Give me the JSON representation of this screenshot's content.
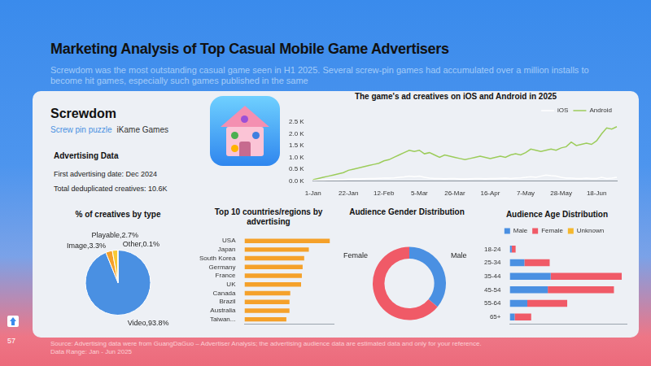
{
  "header": {
    "title": "Marketing Analysis of Top Casual Mobile Game Advertisers",
    "subtitle": "Screwdom was the most outstanding casual game seen in H1 2025. Several screw-pin games had accumulated over a million installs to become hit games, especially such games published in the same"
  },
  "game": {
    "name": "Screwdom",
    "genre": "Screw pin puzzle",
    "publisher": "iKame Games"
  },
  "advertising_data": {
    "heading": "Advertising Data",
    "lines": [
      "First advertising date: Dec 2024",
      "Total deduplicated creatives: 10.6K"
    ]
  },
  "chart_data": [
    {
      "type": "line",
      "title": "The game's ad creatives on iOS and Android in 2025",
      "categories": [
        "1-Jan",
        null,
        null,
        null,
        null,
        null,
        null,
        "22-Jan",
        null,
        null,
        null,
        null,
        null,
        null,
        "12-Feb",
        null,
        null,
        null,
        null,
        null,
        null,
        "5-Mar",
        null,
        null,
        null,
        null,
        null,
        null,
        "26-Mar",
        null,
        null,
        null,
        null,
        null,
        null,
        "16-Apr",
        null,
        null,
        null,
        null,
        null,
        null,
        "7-May",
        null,
        null,
        null,
        null,
        null,
        null,
        "28-May",
        null,
        null,
        null,
        null,
        null,
        null,
        "18-Jun",
        null,
        null,
        null,
        null
      ],
      "series": [
        {
          "name": "iOS",
          "color": "#ffffff",
          "values": [
            0.02,
            0.03,
            0.03,
            0.04,
            0.05,
            0.05,
            0.06,
            0.07,
            0.08,
            0.08,
            0.09,
            0.1,
            0.1,
            0.11,
            0.12,
            0.12,
            0.13,
            0.15,
            0.17,
            0.2,
            0.18,
            0.2,
            0.15,
            0.12,
            0.1,
            0.1,
            0.09,
            0.1,
            0.1,
            0.08,
            0.08,
            0.09,
            0.1,
            0.1,
            0.09,
            0.1,
            0.1,
            0.11,
            0.12,
            0.1,
            0.12,
            0.13,
            0.15,
            0.18,
            0.15,
            0.2,
            0.25,
            0.22,
            0.2,
            0.15,
            0.12,
            0.12,
            0.1,
            0.1,
            0.12,
            0.1,
            0.1,
            0.15,
            0.1,
            0.12,
            0.15
          ]
        },
        {
          "name": "Android",
          "color": "#9ccc5a",
          "values": [
            0.05,
            0.1,
            0.15,
            0.2,
            0.25,
            0.3,
            0.35,
            0.45,
            0.5,
            0.55,
            0.6,
            0.65,
            0.7,
            0.75,
            0.85,
            0.9,
            1.0,
            1.1,
            1.2,
            1.3,
            1.25,
            1.3,
            1.15,
            1.2,
            1.1,
            1.0,
            1.1,
            1.05,
            1.0,
            0.95,
            0.9,
            0.95,
            1.0,
            1.05,
            1.0,
            0.95,
            1.0,
            1.05,
            1.0,
            1.1,
            1.15,
            1.1,
            1.2,
            1.35,
            1.3,
            1.25,
            1.3,
            1.35,
            1.3,
            1.4,
            1.45,
            1.65,
            1.5,
            1.55,
            1.6,
            1.55,
            1.7,
            2.0,
            2.25,
            2.2,
            2.3
          ]
        }
      ],
      "ylim": [
        0,
        2.5
      ],
      "yticks": [
        {
          "value": 0,
          "label": "0.0 K"
        },
        {
          "value": 0.5,
          "label": "0.5 K"
        },
        {
          "value": 1,
          "label": "1.0 K"
        },
        {
          "value": 1.5,
          "label": "1.5 K"
        },
        {
          "value": 2,
          "label": "2.0 K"
        },
        {
          "value": 2.5,
          "label": "2.5 K"
        }
      ],
      "grid": false,
      "legend": "top-right"
    },
    {
      "type": "pie",
      "title": "% of creatives by type",
      "categories": [
        "Video",
        "Image",
        "Playable",
        "Other"
      ],
      "values": [
        93.8,
        3.3,
        2.7,
        0.1
      ],
      "value_labels": [
        "Video,93.8%",
        "Image,3.3%",
        "Playable,2.7%",
        "Other,0.1%"
      ],
      "colors": [
        "#4a90e2",
        "#f5a02a",
        "#f8c935",
        "#b3b9c2"
      ],
      "data_labels": true
    },
    {
      "type": "bar",
      "title": "Top 10 countries/regions by advertising",
      "categories": [
        "USA",
        "Japan",
        "South Korea",
        "Germany",
        "France",
        "UK",
        "Canada",
        "Brazil",
        "Australia",
        "Taiwan..."
      ],
      "values": [
        110,
        83,
        77,
        75,
        74,
        73,
        59,
        58,
        58,
        54
      ],
      "color": "#f5a12a",
      "orientation": "horizontal",
      "xlim": [
        0,
        115
      ],
      "tick_labels": "y",
      "grid": false
    },
    {
      "type": "doughnut",
      "title": "Audience Gender Distribution",
      "categories": [
        "Male",
        "Female"
      ],
      "values": [
        36,
        64
      ],
      "colors": [
        "#4a90e2",
        "#f05a67"
      ]
    },
    {
      "type": "bar",
      "title": "Audience Age Distribution",
      "categories": [
        "18-24",
        "25-34",
        "35-44",
        "45-54",
        "55-64",
        "65+"
      ],
      "series": [
        {
          "name": "Male",
          "color": "#4a90e2",
          "values": [
            2,
            15,
            42,
            39,
            18,
            5
          ]
        },
        {
          "name": "Female",
          "color": "#f05a67",
          "values": [
            4,
            26,
            73,
            68,
            41,
            17
          ]
        },
        {
          "name": "Unknown",
          "color": "#f5b82e",
          "values": [
            0,
            0,
            0,
            0,
            0,
            0
          ]
        }
      ],
      "orientation": "horizontal",
      "stacked": true,
      "xlim": [
        0,
        120
      ],
      "tick_labels": "y",
      "grid": false,
      "legend": "top"
    }
  ],
  "footer": {
    "lines": [
      "Source: Advertising data were from GuangDaGuo – Advertiser Analysis; the advertising audience data are estimated data and only for your reference.",
      "Data Range: Jan - Jun 2025"
    ],
    "page": "57"
  }
}
